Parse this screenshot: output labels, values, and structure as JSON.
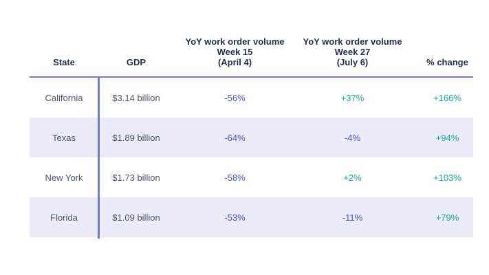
{
  "chart_data": {
    "type": "table",
    "title": "",
    "columns": [
      "State",
      "GDP",
      "YoY work order volume Week 15 (April 4)",
      "YoY work order volume Week 27 (July 6)",
      "% change"
    ],
    "rows": [
      [
        "California",
        "$3.14 billion",
        "-56%",
        "+37%",
        "+166%"
      ],
      [
        "Texas",
        "$1.89 billion",
        "-64%",
        "-4%",
        "+94%"
      ],
      [
        "New York",
        "$1.73 billion",
        "-58%",
        "+2%",
        "+103%"
      ],
      [
        "Florida",
        "$1.09 billion",
        "-53%",
        "-11%",
        "+79%"
      ]
    ],
    "layout": {
      "striped_rows": [
        2,
        4
      ],
      "divider_after_column": 1,
      "value_color_rule": "negative values indigo, positive values teal"
    }
  },
  "table": {
    "headers": {
      "state": {
        "lines": [
          "State"
        ]
      },
      "gdp": {
        "lines": [
          "GDP"
        ]
      },
      "week15": {
        "lines": [
          "YoY work order volume",
          "Week 15",
          "(April 4)"
        ]
      },
      "week27": {
        "lines": [
          "YoY work order volume",
          "Week 27",
          "(July 6)"
        ]
      },
      "change": {
        "lines": [
          "% change"
        ]
      }
    },
    "rows": [
      {
        "state": "California",
        "gdp": "$3.14 billion",
        "week15": "-56%",
        "week27": "+37%",
        "change": "+166%"
      },
      {
        "state": "Texas",
        "gdp": "$1.89 billion",
        "week15": "-64%",
        "week27": "-4%",
        "change": "+94%"
      },
      {
        "state": "New York",
        "gdp": "$1.73 billion",
        "week15": "-58%",
        "week27": "+2%",
        "change": "+103%"
      },
      {
        "state": "Florida",
        "gdp": "$1.09 billion",
        "week15": "-53%",
        "week27": "-11%",
        "change": "+79%"
      }
    ]
  },
  "colors": {
    "header_text": "#22304f",
    "body_text": "#4a546f",
    "negative": "#4353c8",
    "positive": "#12a79e",
    "rule": "#6f7ad2",
    "stripe": "#ebecf7"
  }
}
